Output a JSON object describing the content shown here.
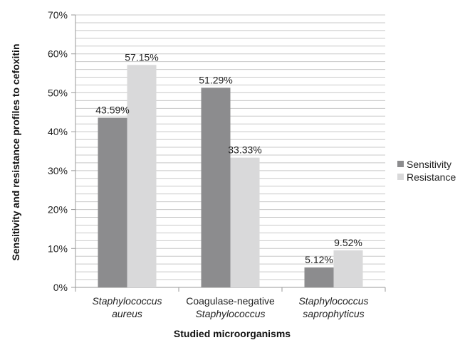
{
  "chart_data": {
    "type": "bar",
    "categories": [
      [
        "Staphylococcus",
        "aureus"
      ],
      [
        "Coagulase-negative",
        "Staphylococcus"
      ],
      [
        "Staphylococcus",
        "saprophyticus"
      ]
    ],
    "category_italic": [
      [
        true,
        true
      ],
      [
        false,
        true
      ],
      [
        true,
        true
      ]
    ],
    "series": [
      {
        "name": "Sensitivity",
        "values": [
          43.59,
          51.29,
          5.12
        ],
        "labels": [
          "43.59%",
          "51.29%",
          "5.12%"
        ],
        "color": "#8c8c8e"
      },
      {
        "name": "Resistance",
        "values": [
          57.15,
          33.33,
          9.52
        ],
        "labels": [
          "57.15%",
          "33.33%",
          "9.52%"
        ],
        "color": "#d9d9da"
      }
    ],
    "yticks": [
      "0%",
      "10%",
      "20%",
      "30%",
      "40%",
      "50%",
      "60%",
      "70%"
    ],
    "ylim": [
      0,
      70
    ],
    "ylabel": "Sensitivity and resistance profiles to cefoxitin",
    "xlabel": "Studied microorganisms",
    "legend_position": "right",
    "grid": true,
    "grid_color": "#c8c8c8",
    "axis_color": "#9a9a9a"
  }
}
